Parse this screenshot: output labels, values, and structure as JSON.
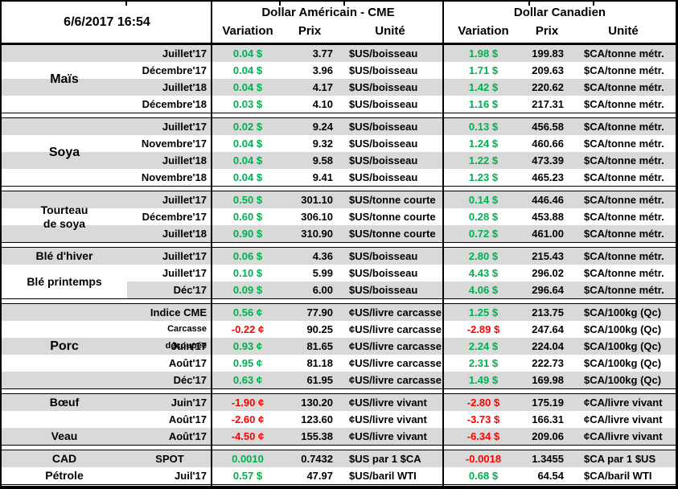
{
  "header": {
    "timestamp": "6/6/2017 16:54",
    "us_title": "Dollar Américain - CME",
    "ca_title": "Dollar Canadien",
    "col_variation": "Variation",
    "col_prix": "Prix",
    "col_unite": "Unité"
  },
  "colors": {
    "positive": "#00b050",
    "negative": "#ff0000",
    "row_shade": "#d9d9d9",
    "border": "#000000"
  },
  "sections": [
    {
      "name": "mais",
      "labels": [
        {
          "text": "Maïs",
          "row": 0,
          "span": 4,
          "size": "lg"
        }
      ],
      "rows": [
        {
          "contract": "Juillet'17",
          "shade": "full",
          "us_var": "0.04 $",
          "us_dir": "pos",
          "us_prix": "3.77",
          "us_unit": "$US/boisseau",
          "ca_var": "1.98 $",
          "ca_dir": "pos",
          "ca_prix": "199.83",
          "ca_unit": "$CA/tonne métr."
        },
        {
          "contract": "Décembre'17",
          "shade": "none",
          "us_var": "0.04 $",
          "us_dir": "pos",
          "us_prix": "3.96",
          "us_unit": "$US/boisseau",
          "ca_var": "1.71 $",
          "ca_dir": "pos",
          "ca_prix": "209.63",
          "ca_unit": "$CA/tonne métr."
        },
        {
          "contract": "Juillet'18",
          "shade": "full",
          "us_var": "0.04 $",
          "us_dir": "pos",
          "us_prix": "4.17",
          "us_unit": "$US/boisseau",
          "ca_var": "1.42 $",
          "ca_dir": "pos",
          "ca_prix": "220.62",
          "ca_unit": "$CA/tonne métr."
        },
        {
          "contract": "Décembre'18",
          "shade": "none",
          "us_var": "0.03 $",
          "us_dir": "pos",
          "us_prix": "4.10",
          "us_unit": "$US/boisseau",
          "ca_var": "1.16 $",
          "ca_dir": "pos",
          "ca_prix": "217.31",
          "ca_unit": "$CA/tonne métr."
        }
      ]
    },
    {
      "name": "soya",
      "labels": [
        {
          "text": "Soya",
          "row": 0,
          "span": 4,
          "size": "lg"
        }
      ],
      "rows": [
        {
          "contract": "Juillet'17",
          "shade": "full",
          "us_var": "0.02 $",
          "us_dir": "pos",
          "us_prix": "9.24",
          "us_unit": "$US/boisseau",
          "ca_var": "0.13 $",
          "ca_dir": "pos",
          "ca_prix": "456.58",
          "ca_unit": "$CA/tonne métr."
        },
        {
          "contract": "Novembre'17",
          "shade": "none",
          "us_var": "0.04 $",
          "us_dir": "pos",
          "us_prix": "9.32",
          "us_unit": "$US/boisseau",
          "ca_var": "1.24 $",
          "ca_dir": "pos",
          "ca_prix": "460.66",
          "ca_unit": "$CA/tonne métr."
        },
        {
          "contract": "Juillet'18",
          "shade": "full",
          "us_var": "0.04 $",
          "us_dir": "pos",
          "us_prix": "9.58",
          "us_unit": "$US/boisseau",
          "ca_var": "1.22 $",
          "ca_dir": "pos",
          "ca_prix": "473.39",
          "ca_unit": "$CA/tonne métr."
        },
        {
          "contract": "Novembre'18",
          "shade": "none",
          "us_var": "0.04 $",
          "us_dir": "pos",
          "us_prix": "9.41",
          "us_unit": "$US/boisseau",
          "ca_var": "1.23 $",
          "ca_dir": "pos",
          "ca_prix": "465.23",
          "ca_unit": "$CA/tonne métr."
        }
      ]
    },
    {
      "name": "tourteau-de-soya",
      "labels": [
        {
          "text": "Tourteau\nde soya",
          "row": 0,
          "span": 3,
          "size": "md"
        }
      ],
      "rows": [
        {
          "contract": "Juillet'17",
          "shade": "full",
          "us_var": "0.50 $",
          "us_dir": "pos",
          "us_prix": "301.10",
          "us_unit": "$US/tonne courte",
          "ca_var": "0.14 $",
          "ca_dir": "pos",
          "ca_prix": "446.46",
          "ca_unit": "$CA/tonne métr."
        },
        {
          "contract": "Décembre'17",
          "shade": "none",
          "us_var": "0.60 $",
          "us_dir": "pos",
          "us_prix": "306.10",
          "us_unit": "$US/tonne courte",
          "ca_var": "0.28 $",
          "ca_dir": "pos",
          "ca_prix": "453.88",
          "ca_unit": "$CA/tonne métr."
        },
        {
          "contract": "Juillet'18",
          "shade": "full",
          "us_var": "0.90 $",
          "us_dir": "pos",
          "us_prix": "310.90",
          "us_unit": "$US/tonne courte",
          "ca_var": "0.72 $",
          "ca_dir": "pos",
          "ca_prix": "461.00",
          "ca_unit": "$CA/tonne métr."
        }
      ]
    },
    {
      "name": "ble",
      "labels": [
        {
          "text": "Blé d'hiver",
          "row": 0,
          "span": 1,
          "size": "md"
        },
        {
          "text": "Blé printemps",
          "row": 1,
          "span": 2,
          "size": "md"
        }
      ],
      "rows": [
        {
          "contract": "Juillet'17",
          "shade": "full",
          "us_var": "0.06 $",
          "us_dir": "pos",
          "us_prix": "4.36",
          "us_unit": "$US/boisseau",
          "ca_var": "2.80 $",
          "ca_dir": "pos",
          "ca_prix": "215.43",
          "ca_unit": "$CA/tonne métr."
        },
        {
          "contract": "Juillet'17",
          "shade": "none",
          "us_var": "0.10 $",
          "us_dir": "pos",
          "us_prix": "5.99",
          "us_unit": "$US/boisseau",
          "ca_var": "4.43 $",
          "ca_dir": "pos",
          "ca_prix": "296.02",
          "ca_unit": "$CA/tonne métr."
        },
        {
          "contract": "Déc'17",
          "shade": "partial",
          "us_var": "0.09 $",
          "us_dir": "pos",
          "us_prix": "6.00",
          "us_unit": "$US/boisseau",
          "ca_var": "4.06 $",
          "ca_dir": "pos",
          "ca_prix": "296.64",
          "ca_unit": "$CA/tonne métr."
        }
      ]
    },
    {
      "name": "porc",
      "labels": [
        {
          "text": "Porc",
          "row": 0,
          "span": 5,
          "size": "lg"
        }
      ],
      "rows": [
        {
          "contract": "Indice CME",
          "shade": "full",
          "us_var": "0.56 ¢",
          "us_dir": "pos",
          "us_prix": "77.90",
          "us_unit": "¢US/livre carcasse",
          "ca_var": "1.25 $",
          "ca_dir": "pos",
          "ca_prix": "213.75",
          "ca_unit": "$CA/100kg (Qc)"
        },
        {
          "contract": "Carcasse découpée",
          "shade": "none",
          "contract_small": true,
          "us_var": "-0.22 ¢",
          "us_dir": "neg",
          "us_prix": "90.25",
          "us_unit": "¢US/livre carcasse",
          "ca_var": "-2.89 $",
          "ca_dir": "neg",
          "ca_prix": "247.64",
          "ca_unit": "$CA/100kg (Qc)"
        },
        {
          "contract": "Juin'17",
          "shade": "full",
          "us_var": "0.93 ¢",
          "us_dir": "pos",
          "us_prix": "81.65",
          "us_unit": "¢US/livre carcasse",
          "ca_var": "2.24 $",
          "ca_dir": "pos",
          "ca_prix": "224.04",
          "ca_unit": "$CA/100kg (Qc)"
        },
        {
          "contract": "Août'17",
          "shade": "none",
          "us_var": "0.95 ¢",
          "us_dir": "pos",
          "us_prix": "81.18",
          "us_unit": "¢US/livre carcasse",
          "ca_var": "2.31 $",
          "ca_dir": "pos",
          "ca_prix": "222.73",
          "ca_unit": "$CA/100kg (Qc)"
        },
        {
          "contract": "Déc'17",
          "shade": "full",
          "us_var": "0.63 ¢",
          "us_dir": "pos",
          "us_prix": "61.95",
          "us_unit": "¢US/livre carcasse",
          "ca_var": "1.49 $",
          "ca_dir": "pos",
          "ca_prix": "169.98",
          "ca_unit": "$CA/100kg (Qc)"
        }
      ]
    },
    {
      "name": "boeuf-veau",
      "labels": [
        {
          "text": "Bœuf",
          "row": 0,
          "span": 1,
          "size": "md"
        },
        {
          "text": "Veau",
          "row": 2,
          "span": 1,
          "size": "md"
        }
      ],
      "rows": [
        {
          "contract": "Juin'17",
          "shade": "full",
          "us_var": "-1.90 ¢",
          "us_dir": "neg",
          "us_prix": "130.20",
          "us_unit": "¢US/livre vivant",
          "ca_var": "-2.80 $",
          "ca_dir": "neg",
          "ca_prix": "175.19",
          "ca_unit": "¢CA/livre vivant"
        },
        {
          "contract": "Août'17",
          "shade": "none",
          "us_var": "-2.60 ¢",
          "us_dir": "neg",
          "us_prix": "123.60",
          "us_unit": "¢US/livre vivant",
          "ca_var": "-3.73 $",
          "ca_dir": "neg",
          "ca_prix": "166.31",
          "ca_unit": "¢CA/livre vivant"
        },
        {
          "contract": "Août'17",
          "shade": "full",
          "us_var": "-4.50 ¢",
          "us_dir": "neg",
          "us_prix": "155.38",
          "us_unit": "¢US/livre vivant",
          "ca_var": "-6.34 $",
          "ca_dir": "neg",
          "ca_prix": "209.06",
          "ca_unit": "¢CA/livre vivant"
        }
      ]
    },
    {
      "name": "cad-petrole",
      "labels": [
        {
          "text": "CAD",
          "row": 0,
          "span": 1,
          "size": "md"
        },
        {
          "text": "Pétrole",
          "row": 1,
          "span": 1,
          "size": "md"
        }
      ],
      "rows": [
        {
          "contract": "SPOT",
          "shade": "full",
          "contract_align": "center",
          "us_var": "0.0010",
          "us_dir": "pos",
          "us_prix": "0.7432",
          "us_unit": "$US par 1 $CA",
          "ca_var": "-0.0018",
          "ca_dir": "neg",
          "ca_prix": "1.3455",
          "ca_unit": "$CA par 1 $US"
        },
        {
          "contract": "Juil'17",
          "shade": "none",
          "us_var": "0.57 $",
          "us_dir": "pos",
          "us_prix": "47.97",
          "us_unit": "$US/baril WTI",
          "ca_var": "0.68 $",
          "ca_dir": "pos",
          "ca_prix": "64.54",
          "ca_unit": "$CA/baril WTI"
        }
      ]
    }
  ]
}
